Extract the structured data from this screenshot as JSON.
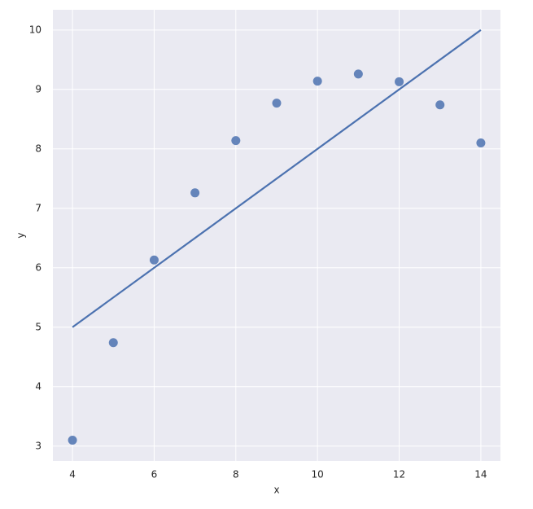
{
  "chart_data": {
    "type": "scatter",
    "x_label": "x",
    "y_label": "y",
    "x": [
      10,
      8,
      13,
      9,
      11,
      14,
      6,
      4,
      12,
      7,
      5
    ],
    "values": [
      9.14,
      8.14,
      8.74,
      8.77,
      9.26,
      8.1,
      6.13,
      3.1,
      9.13,
      7.26,
      4.74
    ],
    "color": "#4c72b0",
    "fit_line": {
      "x": [
        4,
        14
      ],
      "values": [
        5,
        10
      ],
      "color": "#4c72b0"
    },
    "xlim": [
      3.52,
      14.48
    ],
    "ylim": [
      2.75,
      10.34
    ],
    "xticks": [
      4,
      6,
      8,
      10,
      12,
      14
    ],
    "yticks": [
      3,
      4,
      5,
      6,
      7,
      8,
      9,
      10
    ],
    "grid": true,
    "background": "#eaeaf2"
  }
}
